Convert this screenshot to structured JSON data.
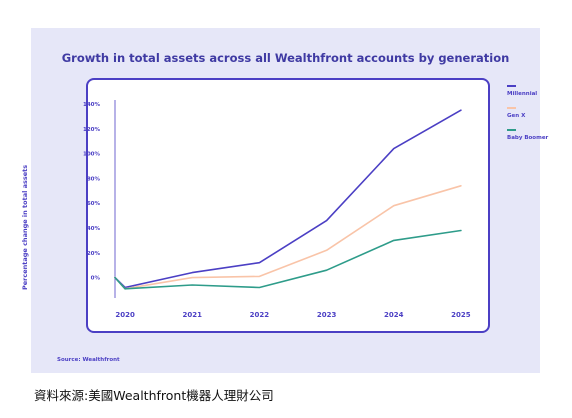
{
  "colors": {
    "panel": "#e6e7f8",
    "accent": "#4b3fc4",
    "title": "#3f3aa3"
  },
  "chart_data": {
    "type": "line",
    "title": "Growth in total assets across all Wealthfront accounts by generation",
    "ylabel": "Percentage change in total assets",
    "xlabel": "",
    "x": [
      2019.85,
      2020,
      2021,
      2022,
      2023,
      2024,
      2025
    ],
    "xticks": [
      "2020",
      "2021",
      "2022",
      "2023",
      "2024",
      "2025"
    ],
    "yticks": [
      "0%",
      "20%",
      "40%",
      "60%",
      "80%",
      "100%",
      "120%",
      "140%"
    ],
    "ylim": [
      -10,
      140
    ],
    "xlim": [
      2019.85,
      2025.15
    ],
    "grid": false,
    "legend_position": "right",
    "series": [
      {
        "name": "Millennial",
        "color": "#4b3fc4",
        "values": [
          0,
          -8,
          4,
          12,
          46,
          104,
          135
        ]
      },
      {
        "name": "Gen X",
        "color": "#f9c4a8",
        "values": [
          0,
          -9,
          0,
          1,
          22,
          58,
          74
        ]
      },
      {
        "name": "Baby Boomer",
        "color": "#2e9c8a",
        "values": [
          0,
          -9,
          -6,
          -8,
          6,
          30,
          38
        ]
      }
    ]
  },
  "source": "Source: Wealthfront",
  "caption": "資料來源:美國Wealthfront機器人理財公司"
}
